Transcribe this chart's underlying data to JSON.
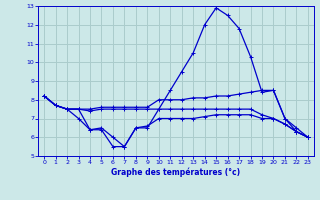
{
  "title": "Graphe des températures (°c)",
  "background_color": "#cce8e8",
  "grid_color": "#aacccc",
  "line_color": "#0000cc",
  "xlim": [
    -0.5,
    23.5
  ],
  "ylim": [
    5,
    13
  ],
  "xticks": [
    0,
    1,
    2,
    3,
    4,
    5,
    6,
    7,
    8,
    9,
    10,
    11,
    12,
    13,
    14,
    15,
    16,
    17,
    18,
    19,
    20,
    21,
    22,
    23
  ],
  "yticks": [
    5,
    6,
    7,
    8,
    9,
    10,
    11,
    12,
    13
  ],
  "series": [
    [
      8.2,
      7.7,
      7.5,
      7.5,
      7.5,
      7.6,
      7.6,
      7.6,
      7.6,
      7.6,
      8.0,
      8.0,
      8.0,
      8.1,
      8.1,
      8.2,
      8.2,
      8.3,
      8.4,
      8.5,
      8.5,
      7.0,
      6.3,
      6.0
    ],
    [
      8.2,
      7.7,
      7.5,
      7.5,
      6.4,
      6.4,
      5.5,
      5.5,
      6.5,
      6.5,
      7.5,
      8.5,
      9.5,
      10.5,
      12.0,
      12.9,
      12.5,
      11.8,
      10.3,
      8.4,
      8.5,
      7.0,
      6.5,
      6.0
    ],
    [
      8.2,
      7.7,
      7.5,
      7.0,
      6.4,
      6.5,
      6.0,
      5.5,
      6.5,
      6.6,
      7.0,
      7.0,
      7.0,
      7.0,
      7.1,
      7.2,
      7.2,
      7.2,
      7.2,
      7.0,
      7.0,
      6.7,
      6.3,
      6.0
    ],
    [
      8.2,
      7.7,
      7.5,
      7.5,
      7.4,
      7.5,
      7.5,
      7.5,
      7.5,
      7.5,
      7.5,
      7.5,
      7.5,
      7.5,
      7.5,
      7.5,
      7.5,
      7.5,
      7.5,
      7.2,
      7.0,
      6.7,
      6.3,
      6.0
    ]
  ]
}
